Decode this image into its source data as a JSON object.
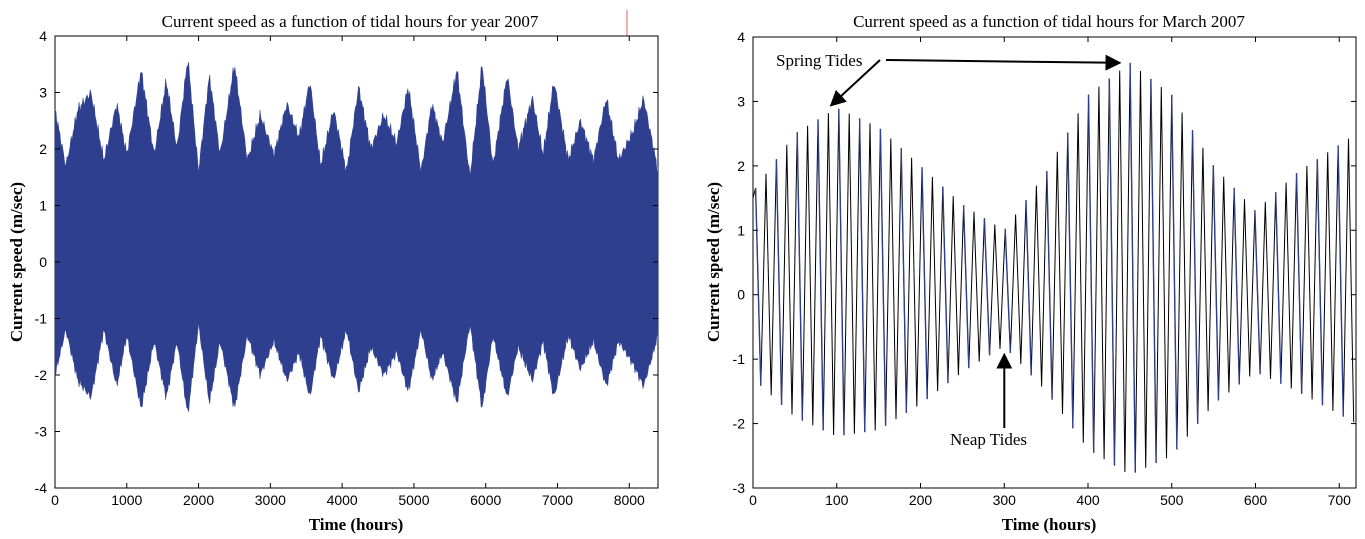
{
  "chart_data": [
    {
      "type": "line",
      "title": "Current speed as a function of tidal hours for year 2007",
      "xlabel": "Time (hours)",
      "ylabel": "Current speed (m/sec)",
      "xlim": [
        0,
        8400
      ],
      "ylim": [
        -4,
        4
      ],
      "xticks": [
        0,
        1000,
        2000,
        3000,
        4000,
        5000,
        6000,
        7000,
        8000
      ],
      "yticks": [
        -4,
        -3,
        -2,
        -1,
        0,
        1,
        2,
        3,
        4
      ],
      "grid": false,
      "series_color": "#2e3f8f",
      "envelope": {
        "x": [
          0,
          150,
          320,
          500,
          680,
          860,
          1000,
          1200,
          1380,
          1550,
          1700,
          1850,
          2000,
          2150,
          2300,
          2500,
          2680,
          2860,
          3050,
          3230,
          3400,
          3550,
          3700,
          3880,
          4060,
          4230,
          4400,
          4580,
          4760,
          4920,
          5100,
          5250,
          5400,
          5600,
          5780,
          5950,
          6100,
          6300,
          6450,
          6650,
          6800,
          6950,
          7150,
          7320,
          7500,
          7680,
          7850,
          8050,
          8200,
          8400
        ],
        "upper": [
          2.7,
          1.7,
          2.7,
          3.0,
          1.8,
          2.8,
          1.9,
          3.4,
          1.9,
          3.2,
          2.0,
          3.6,
          1.6,
          3.3,
          1.9,
          3.5,
          1.8,
          2.6,
          1.9,
          2.8,
          2.2,
          3.2,
          1.7,
          2.7,
          1.6,
          3.1,
          2.0,
          2.6,
          2.1,
          3.1,
          1.6,
          2.8,
          2.1,
          3.4,
          1.5,
          3.5,
          1.7,
          3.3,
          2.0,
          2.9,
          1.9,
          3.2,
          1.8,
          2.5,
          1.8,
          2.9,
          1.8,
          2.3,
          2.9,
          1.6
        ],
        "lower": [
          -2.0,
          -1.2,
          -2.1,
          -2.4,
          -1.2,
          -2.2,
          -1.3,
          -2.6,
          -1.4,
          -2.4,
          -1.4,
          -2.7,
          -1.1,
          -2.5,
          -1.4,
          -2.6,
          -1.3,
          -2.0,
          -1.4,
          -2.1,
          -1.6,
          -2.4,
          -1.3,
          -2.1,
          -1.2,
          -2.3,
          -1.5,
          -2.0,
          -1.6,
          -2.3,
          -1.2,
          -2.1,
          -1.6,
          -2.5,
          -1.1,
          -2.6,
          -1.3,
          -2.4,
          -1.5,
          -2.1,
          -1.4,
          -2.4,
          -1.3,
          -1.9,
          -1.4,
          -2.2,
          -1.4,
          -1.8,
          -2.2,
          -1.3
        ]
      }
    },
    {
      "type": "line",
      "title": "Current speed as a function of tidal hours for March 2007",
      "xlabel": "Time (hours)",
      "ylabel": "Current speed (m/sec)",
      "xlim": [
        0,
        720
      ],
      "ylim": [
        -3,
        4
      ],
      "xticks": [
        0,
        100,
        200,
        300,
        400,
        500,
        600,
        700
      ],
      "yticks": [
        -3,
        -2,
        -1,
        0,
        1,
        2,
        3,
        4
      ],
      "grid": false,
      "series_colors": [
        "#000000",
        "#2e3f8f"
      ],
      "period_hours": 12.42,
      "envelope_points": {
        "x": [
          0,
          50,
          100,
          150,
          200,
          250,
          300,
          350,
          400,
          450,
          500,
          550,
          600,
          650,
          720
        ],
        "upper": [
          1.6,
          2.5,
          2.9,
          2.6,
          2.0,
          1.4,
          1.0,
          1.9,
          3.1,
          3.6,
          3.1,
          2.0,
          1.3,
          1.9,
          2.5
        ],
        "lower": [
          -1.3,
          -1.9,
          -2.2,
          -2.1,
          -1.7,
          -1.2,
          -0.8,
          -1.5,
          -2.4,
          -2.8,
          -2.5,
          -1.7,
          -1.2,
          -1.5,
          -2.0
        ]
      },
      "annotations": [
        {
          "text": "Spring Tides",
          "target_x": [
            95,
            440
          ],
          "target_y": [
            2.9,
            3.6
          ]
        },
        {
          "text": "Neap Tides",
          "target_x": 300,
          "target_y": -0.9
        }
      ]
    }
  ]
}
